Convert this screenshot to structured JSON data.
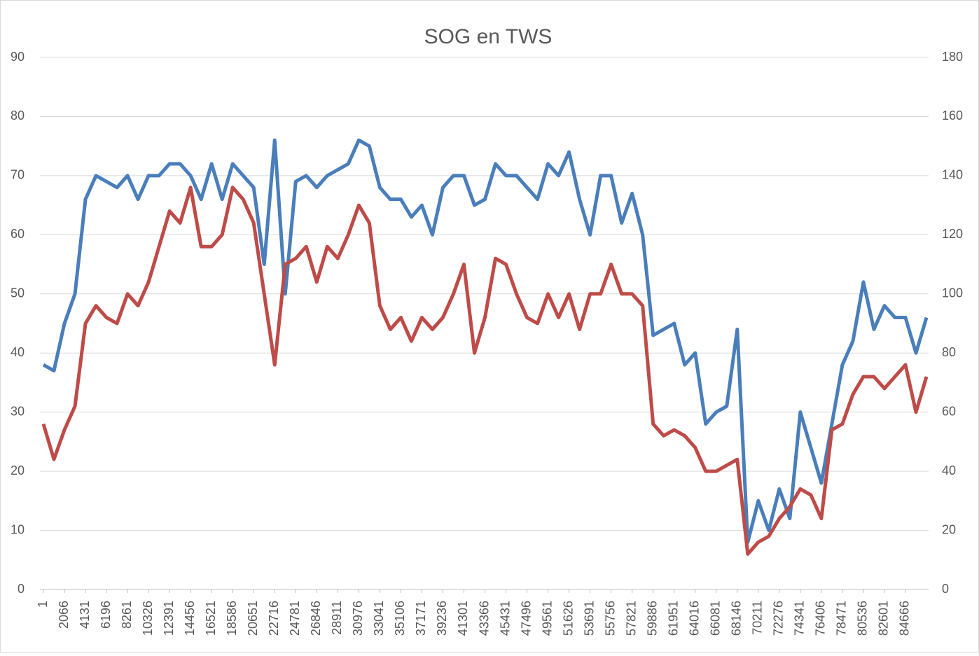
{
  "chart_data": {
    "type": "line",
    "title": "SOG en TWS",
    "x": [
      1,
      1034,
      2066,
      3099,
      4131,
      5164,
      6196,
      7229,
      8261,
      9294,
      10326,
      11359,
      12391,
      13424,
      14456,
      15489,
      16521,
      17554,
      18586,
      19619,
      20651,
      21684,
      22716,
      23749,
      24781,
      25814,
      26846,
      27879,
      28911,
      29944,
      30976,
      32009,
      33041,
      34074,
      35106,
      36139,
      37171,
      38204,
      39236,
      40269,
      41301,
      42334,
      43366,
      44399,
      45431,
      46464,
      47496,
      48529,
      49561,
      50594,
      51626,
      52659,
      53691,
      54724,
      55756,
      56789,
      57821,
      58854,
      59886,
      60919,
      61951,
      62984,
      64016,
      65049,
      66081,
      67114,
      68146,
      69179,
      70211,
      71244,
      72276,
      73309,
      74341,
      75374,
      76406,
      77439,
      78471,
      79504,
      80536,
      81569,
      82601,
      83634,
      84666,
      85699,
      86731
    ],
    "xlim": [
      1,
      86731
    ],
    "xticks": [
      1,
      2066,
      4131,
      6196,
      8261,
      10326,
      12391,
      14456,
      16521,
      18586,
      20651,
      22716,
      24781,
      26846,
      28911,
      30976,
      33041,
      35106,
      37171,
      39236,
      41301,
      43366,
      45431,
      47496,
      49561,
      51626,
      53691,
      55756,
      57821,
      59886,
      61951,
      64016,
      66081,
      68146,
      70211,
      72276,
      74341,
      76406,
      78471,
      80536,
      82601,
      84666
    ],
    "ylim": [
      0,
      90
    ],
    "yticks": [
      0,
      10,
      20,
      30,
      40,
      50,
      60,
      70,
      80,
      90
    ],
    "y2lim": [
      0,
      180
    ],
    "y2ticks": [
      0,
      20,
      40,
      60,
      80,
      100,
      120,
      140,
      160,
      180
    ],
    "grid": true,
    "series": [
      {
        "color": "#4a7ebb",
        "axis": "y",
        "values": [
          38,
          37,
          45,
          50,
          66,
          70,
          69,
          68,
          70,
          66,
          70,
          70,
          72,
          72,
          70,
          66,
          72,
          66,
          72,
          70,
          68,
          55,
          76,
          50,
          69,
          70,
          68,
          70,
          71,
          72,
          76,
          75,
          68,
          66,
          66,
          63,
          65,
          60,
          68,
          70,
          70,
          65,
          66,
          72,
          70,
          70,
          68,
          66,
          72,
          70,
          74,
          66,
          60,
          70,
          70,
          62,
          67,
          60,
          43,
          44,
          45,
          38,
          40,
          28,
          30,
          31,
          44,
          8,
          15,
          10,
          17,
          12,
          30,
          24,
          18,
          28,
          38,
          42,
          52,
          44,
          48,
          46,
          46,
          40,
          46
        ]
      },
      {
        "color": "#be4b48",
        "axis": "y2",
        "values": [
          56,
          44,
          54,
          62,
          90,
          96,
          92,
          90,
          100,
          96,
          104,
          116,
          128,
          124,
          136,
          116,
          116,
          120,
          136,
          132,
          124,
          100,
          76,
          110,
          112,
          116,
          104,
          116,
          112,
          120,
          130,
          124,
          96,
          88,
          92,
          84,
          92,
          88,
          92,
          100,
          110,
          80,
          92,
          112,
          110,
          100,
          92,
          90,
          100,
          92,
          100,
          88,
          100,
          100,
          110,
          100,
          100,
          96,
          56,
          52,
          54,
          52,
          48,
          40,
          40,
          42,
          44,
          12,
          16,
          18,
          24,
          28,
          34,
          32,
          24,
          54,
          56,
          66,
          72,
          72,
          68,
          72,
          76,
          60,
          72
        ]
      }
    ]
  }
}
